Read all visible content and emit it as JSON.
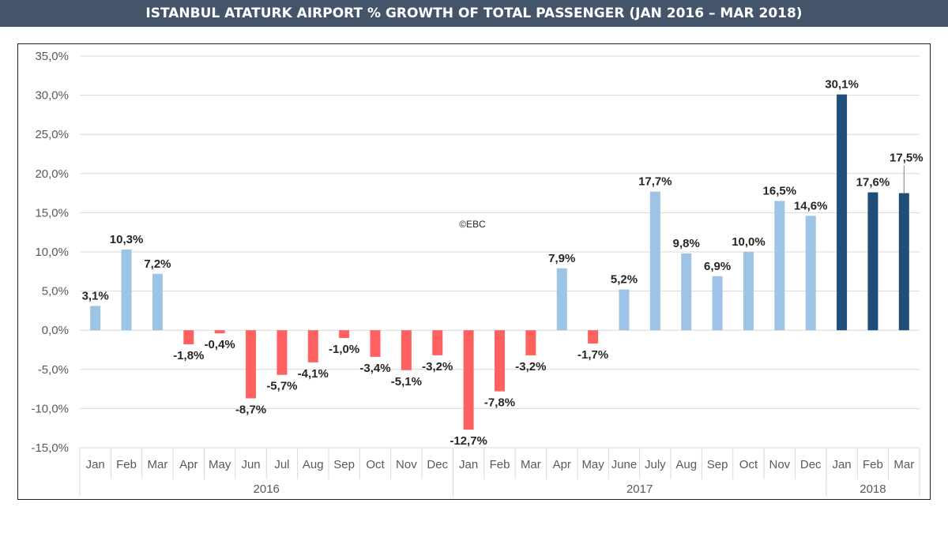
{
  "title": "ISTANBUL ATATURK AIRPORT % GROWTH OF TOTAL PASSENGER (JAN 2016 – MAR 2018)",
  "watermark": "©EBC",
  "chart_data": {
    "type": "bar",
    "title": "ISTANBUL ATATURK AIRPORT % GROWTH OF TOTAL PASSENGER (JAN 2016 – MAR 2018)",
    "xlabel": "",
    "ylabel": "",
    "ylim": [
      -15,
      35
    ],
    "yticks": [
      35,
      30,
      25,
      20,
      15,
      10,
      5,
      0,
      -5,
      -10,
      -15
    ],
    "ytick_labels": [
      "35,0%",
      "30,0%",
      "25,0%",
      "20,0%",
      "15,0%",
      "10,0%",
      "5,0%",
      "0,0%",
      "-5,0%",
      "-10,0%",
      "-15,0%"
    ],
    "grid": true,
    "legend": "none",
    "categories": [
      "Jan",
      "Feb",
      "Mar",
      "Apr",
      "May",
      "Jun",
      "Jul",
      "Aug",
      "Sep",
      "Oct",
      "Nov",
      "Dec",
      "Jan",
      "Feb",
      "Mar",
      "Apr",
      "May",
      "June",
      "July",
      "Aug",
      "Sep",
      "Oct",
      "Nov",
      "Dec",
      "Jan",
      "Feb",
      "Mar"
    ],
    "values": [
      3.1,
      10.3,
      7.2,
      -1.8,
      -0.4,
      -8.7,
      -5.7,
      -4.1,
      -1.0,
      -3.4,
      -5.1,
      -3.2,
      -12.7,
      -7.8,
      -3.2,
      7.9,
      -1.7,
      5.2,
      17.7,
      9.8,
      6.9,
      10.0,
      16.5,
      14.6,
      30.1,
      17.6,
      17.5
    ],
    "value_labels": [
      "3,1%",
      "10,3%",
      "7,2%",
      "-1,8%",
      "-0,4%",
      "-8,7%",
      "-5,7%",
      "-4,1%",
      "-1,0%",
      "-3,4%",
      "-5,1%",
      "-3,2%",
      "-12,7%",
      "-7,8%",
      "-3,2%",
      "7,9%",
      "-1,7%",
      "5,2%",
      "17,7%",
      "9,8%",
      "6,9%",
      "10,0%",
      "16,5%",
      "14,6%",
      "30,1%",
      "17,6%",
      "17,5%"
    ],
    "groups": [
      {
        "label": "2016",
        "count": 12
      },
      {
        "label": "2017",
        "count": 12
      },
      {
        "label": "2018",
        "count": 3
      }
    ],
    "colors": {
      "positive": "#9dc3e6",
      "negative": "#ff6161",
      "year_2018": "#1f4e79",
      "grid": "#d9d9d9",
      "axis_text": "#595959",
      "label_text": "#262626"
    }
  }
}
